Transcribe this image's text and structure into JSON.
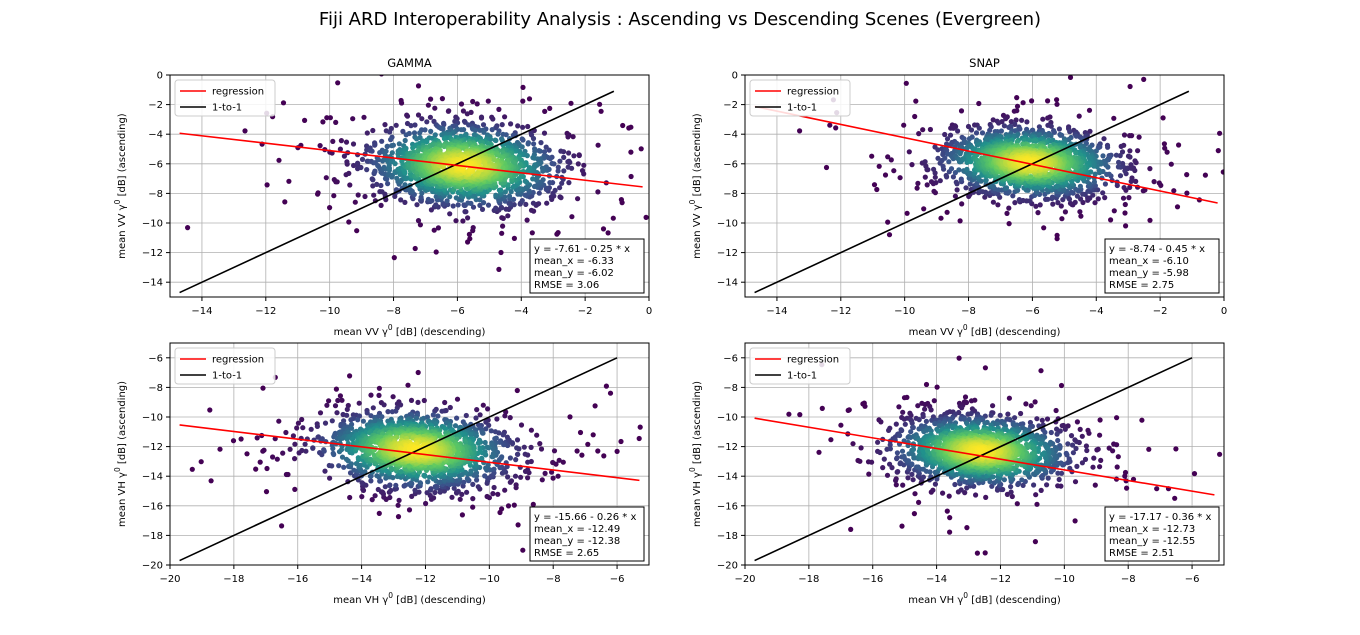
{
  "figure": {
    "title": "Fiji ARD Interoperability Analysis : Ascending vs Descending Scenes (Evergreen)"
  },
  "chart_data": [
    {
      "type": "scatter",
      "title": "GAMMA",
      "xlabel": "mean VV γ0 [dB] (descending)",
      "ylabel": "mean VV γ0 [dB] (ascending)",
      "xlim": [
        -15,
        0
      ],
      "ylim": [
        -15,
        0
      ],
      "xticks": [
        -14,
        -12,
        -10,
        -8,
        -6,
        -4,
        -2,
        0
      ],
      "yticks": [
        -14,
        -12,
        -10,
        -8,
        -6,
        -4,
        -2,
        0
      ],
      "grid": true,
      "legend": {
        "placement": "top-left",
        "entries": [
          "regression",
          "1-to-1"
        ]
      },
      "regression": {
        "intercept": -7.61,
        "slope": -0.25,
        "x_range": [
          -14.7,
          -0.2
        ],
        "color": "#ff0000"
      },
      "one_to_one": {
        "x_range": [
          -14.7,
          -1.1
        ],
        "color": "#000000"
      },
      "cloud": {
        "center": [
          -5.8,
          -6.1
        ],
        "spread": [
          1.4,
          1.3
        ]
      },
      "annotation": [
        "y = -7.61 - 0.25 * x",
        "mean_x = -6.33",
        "mean_y = -6.02",
        "RMSE = 3.06"
      ]
    },
    {
      "type": "scatter",
      "title": "SNAP",
      "xlabel": "mean VV γ0 [dB] (descending)",
      "ylabel": "mean VV γ0 [dB] (ascending)",
      "xlim": [
        -15,
        0
      ],
      "ylim": [
        -15,
        0
      ],
      "xticks": [
        -14,
        -12,
        -10,
        -8,
        -6,
        -4,
        -2,
        0
      ],
      "yticks": [
        -14,
        -12,
        -10,
        -8,
        -6,
        -4,
        -2,
        0
      ],
      "grid": true,
      "legend": {
        "placement": "top-left",
        "entries": [
          "regression",
          "1-to-1"
        ]
      },
      "regression": {
        "intercept": -8.74,
        "slope": -0.45,
        "x_range": [
          -14.7,
          -0.2
        ],
        "color": "#ff0000"
      },
      "one_to_one": {
        "x_range": [
          -14.7,
          -1.1
        ],
        "color": "#000000"
      },
      "cloud": {
        "center": [
          -6.1,
          -5.9
        ],
        "spread": [
          1.3,
          1.1
        ]
      },
      "annotation": [
        "y = -8.74 - 0.45 * x",
        "mean_x = -6.10",
        "mean_y = -5.98",
        "RMSE = 2.75"
      ]
    },
    {
      "type": "scatter",
      "title": "",
      "xlabel": "mean VH γ0 [dB] (descending)",
      "ylabel": "mean VH γ0 [dB] (ascending)",
      "xlim": [
        -20,
        -5
      ],
      "ylim": [
        -20,
        -5
      ],
      "xticks": [
        -20,
        -18,
        -16,
        -14,
        -12,
        -10,
        -8,
        -6
      ],
      "yticks": [
        -20,
        -18,
        -16,
        -14,
        -12,
        -10,
        -8,
        -6
      ],
      "grid": true,
      "legend": {
        "placement": "top-left",
        "entries": [
          "regression",
          "1-to-1"
        ]
      },
      "regression": {
        "intercept": -15.66,
        "slope": -0.26,
        "x_range": [
          -19.7,
          -5.3
        ],
        "color": "#ff0000"
      },
      "one_to_one": {
        "x_range": [
          -19.7,
          -6.0
        ],
        "color": "#000000"
      },
      "cloud": {
        "center": [
          -12.3,
          -12.2
        ],
        "spread": [
          1.4,
          1.2
        ]
      },
      "annotation": [
        "y = -15.66 - 0.26 * x",
        "mean_x = -12.49",
        "mean_y = -12.38",
        "RMSE = 2.65"
      ]
    },
    {
      "type": "scatter",
      "title": "",
      "xlabel": "mean VH γ0 [dB] (descending)",
      "ylabel": "mean VH γ0 [dB] (ascending)",
      "xlim": [
        -20,
        -5
      ],
      "ylim": [
        -20,
        -5
      ],
      "xticks": [
        -20,
        -18,
        -16,
        -14,
        -12,
        -10,
        -8,
        -6
      ],
      "yticks": [
        -20,
        -18,
        -16,
        -14,
        -12,
        -10,
        -8,
        -6
      ],
      "grid": true,
      "legend": {
        "placement": "top-left",
        "entries": [
          "regression",
          "1-to-1"
        ]
      },
      "regression": {
        "intercept": -17.17,
        "slope": -0.36,
        "x_range": [
          -19.7,
          -5.3
        ],
        "color": "#ff0000"
      },
      "one_to_one": {
        "x_range": [
          -19.7,
          -6.0
        ],
        "color": "#000000"
      },
      "cloud": {
        "center": [
          -12.6,
          -12.3
        ],
        "spread": [
          1.3,
          1.1
        ]
      },
      "annotation": [
        "y = -17.17 - 0.36 * x",
        "mean_x = -12.73",
        "mean_y = -12.55",
        "RMSE = 2.51"
      ]
    }
  ]
}
